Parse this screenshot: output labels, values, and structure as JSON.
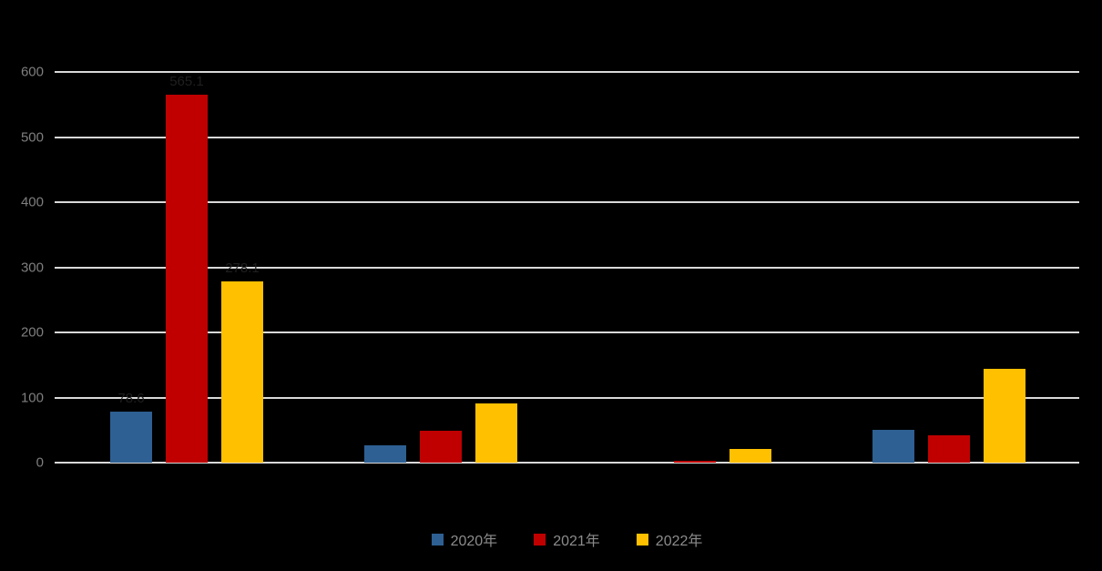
{
  "chart_data": {
    "type": "bar",
    "title": "",
    "categories": [
      "",
      "",
      "",
      ""
    ],
    "series": [
      {
        "name": "2020年",
        "color": "#2E6093",
        "values": [
          78,
          27,
          0,
          51
        ],
        "data_labels": [
          "78.6",
          null,
          null,
          null
        ]
      },
      {
        "name": "2021年",
        "color": "#C00000",
        "values": [
          565,
          49,
          3,
          42
        ],
        "data_labels": [
          "565.1",
          null,
          null,
          null
        ]
      },
      {
        "name": "2022年",
        "color": "#FFC000",
        "values": [
          278,
          91,
          21,
          144
        ],
        "data_labels": [
          "278.1",
          null,
          null,
          null
        ]
      }
    ],
    "ylim": [
      0,
      600
    ],
    "yticks": [
      "0",
      "100",
      "200",
      "300",
      "400",
      "500",
      "600"
    ],
    "grid": true,
    "legend_position": "bottom",
    "background_color": "#000000",
    "gridline_color": "#d9d9d9",
    "axis_label_color": "#7f7f7f",
    "legend_text_color": "#8c8c8c",
    "data_label_color": "#1f1f1f"
  }
}
